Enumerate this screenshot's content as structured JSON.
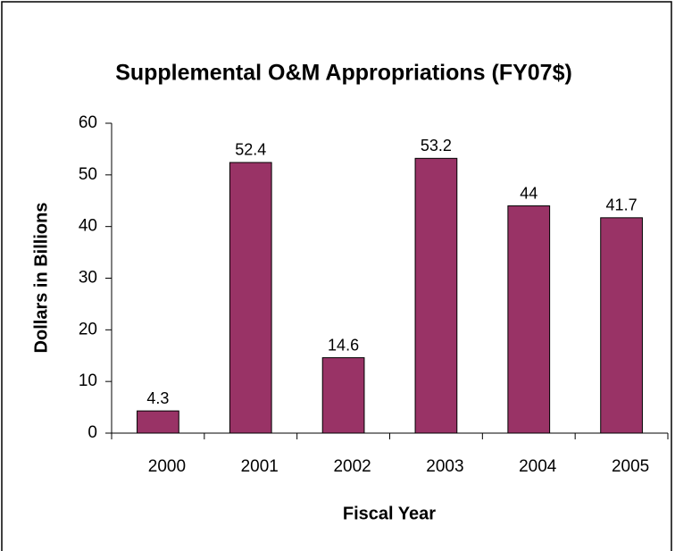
{
  "chart_data": {
    "type": "bar",
    "title": "Supplemental O&M Appropriations (FY07$)",
    "x_label": "Fiscal Year",
    "y_label": "Dollars in Billions",
    "categories": [
      "2000",
      "2001",
      "2002",
      "2003",
      "2004",
      "2005"
    ],
    "values": [
      4.3,
      52.4,
      14.6,
      53.2,
      44,
      41.7
    ],
    "color": "#993366",
    "ylim": [
      0,
      60
    ],
    "yticks": [
      0,
      10,
      20,
      30,
      40,
      50,
      60
    ],
    "grid": false
  }
}
